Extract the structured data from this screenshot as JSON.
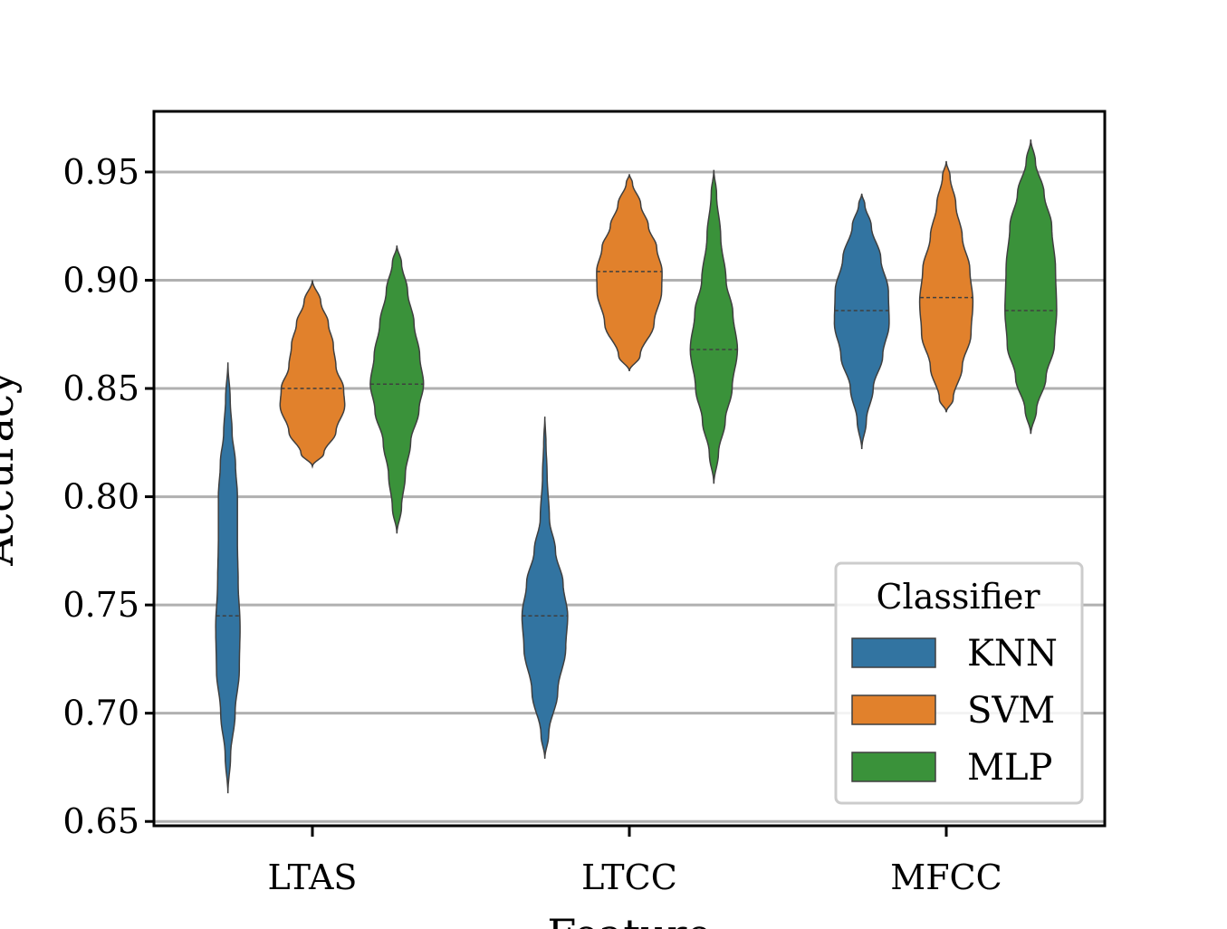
{
  "chart_data": {
    "type": "violin",
    "xlabel": "Feature",
    "ylabel": "Accuracy",
    "categories": [
      "LTAS",
      "LTCC",
      "MFCC"
    ],
    "ylim": [
      0.648,
      0.978
    ],
    "yticks": [
      "0.65",
      "0.70",
      "0.75",
      "0.80",
      "0.85",
      "0.90",
      "0.95"
    ],
    "ytick_values": [
      0.65,
      0.7,
      0.75,
      0.8,
      0.85,
      0.9,
      0.95
    ],
    "grid": "horizontal",
    "legend": {
      "title": "Classifier",
      "placement": "lower-right",
      "entries": [
        "KNN",
        "SVM",
        "MLP"
      ]
    },
    "series": [
      {
        "name": "KNN",
        "color": "#3274a1",
        "violins": [
          {
            "category": "LTAS",
            "min": 0.663,
            "max": 0.862,
            "median": 0.745,
            "profile": [
              [
                0.663,
                0.0
              ],
              [
                0.68,
                0.07
              ],
              [
                0.7,
                0.19
              ],
              [
                0.72,
                0.3
              ],
              [
                0.74,
                0.32
              ],
              [
                0.76,
                0.27
              ],
              [
                0.78,
                0.25
              ],
              [
                0.8,
                0.25
              ],
              [
                0.815,
                0.2
              ],
              [
                0.83,
                0.11
              ],
              [
                0.845,
                0.06
              ],
              [
                0.862,
                0.0
              ]
            ]
          },
          {
            "category": "LTCC",
            "min": 0.679,
            "max": 0.837,
            "median": 0.745,
            "profile": [
              [
                0.679,
                0.0
              ],
              [
                0.69,
                0.1
              ],
              [
                0.71,
                0.34
              ],
              [
                0.73,
                0.55
              ],
              [
                0.745,
                0.6
              ],
              [
                0.76,
                0.48
              ],
              [
                0.775,
                0.28
              ],
              [
                0.79,
                0.12
              ],
              [
                0.81,
                0.06
              ],
              [
                0.825,
                0.03
              ],
              [
                0.837,
                0.0
              ]
            ]
          },
          {
            "category": "MFCC",
            "min": 0.822,
            "max": 0.94,
            "median": 0.886,
            "profile": [
              [
                0.822,
                0.0
              ],
              [
                0.835,
                0.12
              ],
              [
                0.85,
                0.3
              ],
              [
                0.865,
                0.55
              ],
              [
                0.88,
                0.72
              ],
              [
                0.895,
                0.7
              ],
              [
                0.91,
                0.5
              ],
              [
                0.925,
                0.25
              ],
              [
                0.935,
                0.08
              ],
              [
                0.94,
                0.0
              ]
            ]
          }
        ]
      },
      {
        "name": "SVM",
        "color": "#e1812c",
        "violins": [
          {
            "category": "LTAS",
            "min": 0.814,
            "max": 0.9,
            "median": 0.85,
            "profile": [
              [
                0.814,
                0.0
              ],
              [
                0.82,
                0.3
              ],
              [
                0.83,
                0.62
              ],
              [
                0.842,
                0.85
              ],
              [
                0.85,
                0.82
              ],
              [
                0.86,
                0.62
              ],
              [
                0.87,
                0.55
              ],
              [
                0.88,
                0.42
              ],
              [
                0.89,
                0.22
              ],
              [
                0.9,
                0.0
              ]
            ]
          },
          {
            "category": "LTCC",
            "min": 0.858,
            "max": 0.949,
            "median": 0.904,
            "profile": [
              [
                0.858,
                0.0
              ],
              [
                0.865,
                0.28
              ],
              [
                0.88,
                0.65
              ],
              [
                0.895,
                0.85
              ],
              [
                0.904,
                0.86
              ],
              [
                0.915,
                0.72
              ],
              [
                0.925,
                0.5
              ],
              [
                0.935,
                0.3
              ],
              [
                0.945,
                0.08
              ],
              [
                0.949,
                0.0
              ]
            ]
          },
          {
            "category": "MFCC",
            "min": 0.839,
            "max": 0.955,
            "median": 0.892,
            "profile": [
              [
                0.839,
                0.0
              ],
              [
                0.845,
                0.18
              ],
              [
                0.86,
                0.42
              ],
              [
                0.875,
                0.65
              ],
              [
                0.89,
                0.7
              ],
              [
                0.905,
                0.62
              ],
              [
                0.92,
                0.42
              ],
              [
                0.935,
                0.25
              ],
              [
                0.948,
                0.1
              ],
              [
                0.955,
                0.0
              ]
            ]
          }
        ]
      },
      {
        "name": "MLP",
        "color": "#3a923a",
        "violins": [
          {
            "category": "LTAS",
            "min": 0.783,
            "max": 0.916,
            "median": 0.852,
            "profile": [
              [
                0.783,
                0.0
              ],
              [
                0.795,
                0.12
              ],
              [
                0.81,
                0.22
              ],
              [
                0.825,
                0.36
              ],
              [
                0.84,
                0.58
              ],
              [
                0.852,
                0.7
              ],
              [
                0.865,
                0.6
              ],
              [
                0.88,
                0.45
              ],
              [
                0.895,
                0.28
              ],
              [
                0.908,
                0.12
              ],
              [
                0.916,
                0.0
              ]
            ]
          },
          {
            "category": "LTCC",
            "min": 0.806,
            "max": 0.951,
            "median": 0.868,
            "profile": [
              [
                0.806,
                0.0
              ],
              [
                0.82,
                0.12
              ],
              [
                0.835,
                0.3
              ],
              [
                0.85,
                0.48
              ],
              [
                0.868,
                0.62
              ],
              [
                0.885,
                0.5
              ],
              [
                0.9,
                0.32
              ],
              [
                0.92,
                0.18
              ],
              [
                0.94,
                0.07
              ],
              [
                0.951,
                0.0
              ]
            ]
          },
          {
            "category": "MFCC",
            "min": 0.829,
            "max": 0.965,
            "median": 0.886,
            "profile": [
              [
                0.829,
                0.0
              ],
              [
                0.84,
                0.15
              ],
              [
                0.855,
                0.4
              ],
              [
                0.87,
                0.62
              ],
              [
                0.886,
                0.68
              ],
              [
                0.905,
                0.65
              ],
              [
                0.925,
                0.55
              ],
              [
                0.94,
                0.35
              ],
              [
                0.955,
                0.12
              ],
              [
                0.965,
                0.0
              ]
            ]
          }
        ]
      }
    ]
  }
}
